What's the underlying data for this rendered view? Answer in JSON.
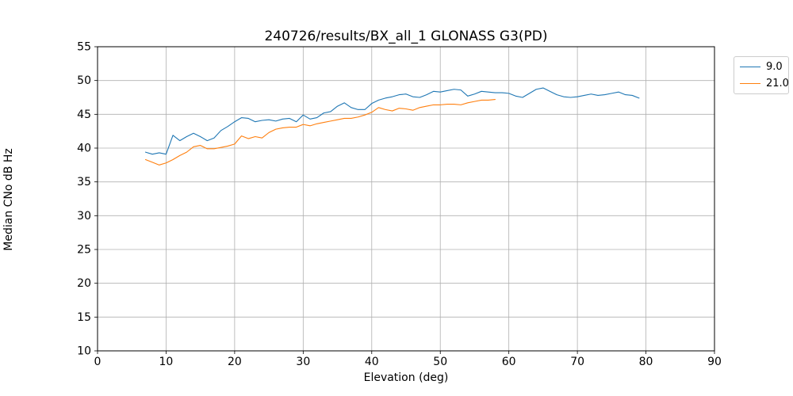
{
  "chart_data": {
    "type": "line",
    "title": "240726/results/BX_all_1 GLONASS G3(PD)",
    "xlabel": "Elevation (deg)",
    "ylabel": "Median CNo dB Hz",
    "xlim": [
      0,
      90
    ],
    "ylim": [
      10,
      55
    ],
    "xticks": [
      0,
      10,
      20,
      30,
      40,
      50,
      60,
      70,
      80,
      90
    ],
    "yticks": [
      10,
      15,
      20,
      25,
      30,
      35,
      40,
      45,
      50,
      55
    ],
    "grid": true,
    "grid_color": "#b0b0b0",
    "legend_position": "outside-top-right",
    "series": [
      {
        "name": "9.0",
        "color": "#1f77b4",
        "x": [
          7,
          8,
          9,
          10,
          11,
          12,
          13,
          14,
          15,
          16,
          17,
          18,
          19,
          20,
          21,
          22,
          23,
          24,
          25,
          26,
          27,
          28,
          29,
          30,
          31,
          32,
          33,
          34,
          35,
          36,
          37,
          38,
          39,
          40,
          41,
          42,
          43,
          44,
          45,
          46,
          47,
          48,
          49,
          50,
          51,
          52,
          53,
          54,
          55,
          56,
          57,
          58,
          59,
          60,
          61,
          62,
          63,
          64,
          65,
          66,
          67,
          68,
          69,
          70,
          71,
          72,
          73,
          74,
          75,
          76,
          77,
          78,
          79
        ],
        "y": [
          39.4,
          39.1,
          39.3,
          39.1,
          41.9,
          41.1,
          41.7,
          42.2,
          41.7,
          41.1,
          41.5,
          42.6,
          43.2,
          43.9,
          44.5,
          44.4,
          43.9,
          44.1,
          44.2,
          44.0,
          44.3,
          44.4,
          43.9,
          44.9,
          44.3,
          44.5,
          45.2,
          45.4,
          46.2,
          46.7,
          46.0,
          45.7,
          45.7,
          46.6,
          47.1,
          47.4,
          47.6,
          47.9,
          48.0,
          47.6,
          47.5,
          47.9,
          48.4,
          48.3,
          48.5,
          48.7,
          48.6,
          47.7,
          48.0,
          48.4,
          48.3,
          48.2,
          48.2,
          48.1,
          47.7,
          47.5,
          48.1,
          48.7,
          48.9,
          48.4,
          47.9,
          47.6,
          47.5,
          47.6,
          47.8,
          48.0,
          47.8,
          47.9,
          48.1,
          48.3,
          47.9,
          47.8,
          47.4
        ]
      },
      {
        "name": "21.0",
        "color": "#ff7f0e",
        "x": [
          7,
          8,
          9,
          10,
          11,
          12,
          13,
          14,
          15,
          16,
          17,
          18,
          19,
          20,
          21,
          22,
          23,
          24,
          25,
          26,
          27,
          28,
          29,
          30,
          31,
          32,
          33,
          34,
          35,
          36,
          37,
          38,
          39,
          40,
          41,
          42,
          43,
          44,
          45,
          46,
          47,
          48,
          49,
          50,
          51,
          52,
          53,
          54,
          55,
          56,
          57,
          58
        ],
        "y": [
          38.3,
          37.9,
          37.5,
          37.8,
          38.3,
          38.9,
          39.4,
          40.2,
          40.4,
          39.9,
          39.9,
          40.1,
          40.3,
          40.6,
          41.8,
          41.4,
          41.7,
          41.5,
          42.3,
          42.8,
          43.0,
          43.1,
          43.1,
          43.5,
          43.3,
          43.6,
          43.8,
          44.0,
          44.2,
          44.4,
          44.4,
          44.6,
          44.9,
          45.3,
          46.0,
          45.7,
          45.5,
          45.9,
          45.8,
          45.6,
          46.0,
          46.2,
          46.4,
          46.4,
          46.5,
          46.5,
          46.4,
          46.7,
          46.9,
          47.1,
          47.1,
          47.2
        ]
      }
    ]
  }
}
